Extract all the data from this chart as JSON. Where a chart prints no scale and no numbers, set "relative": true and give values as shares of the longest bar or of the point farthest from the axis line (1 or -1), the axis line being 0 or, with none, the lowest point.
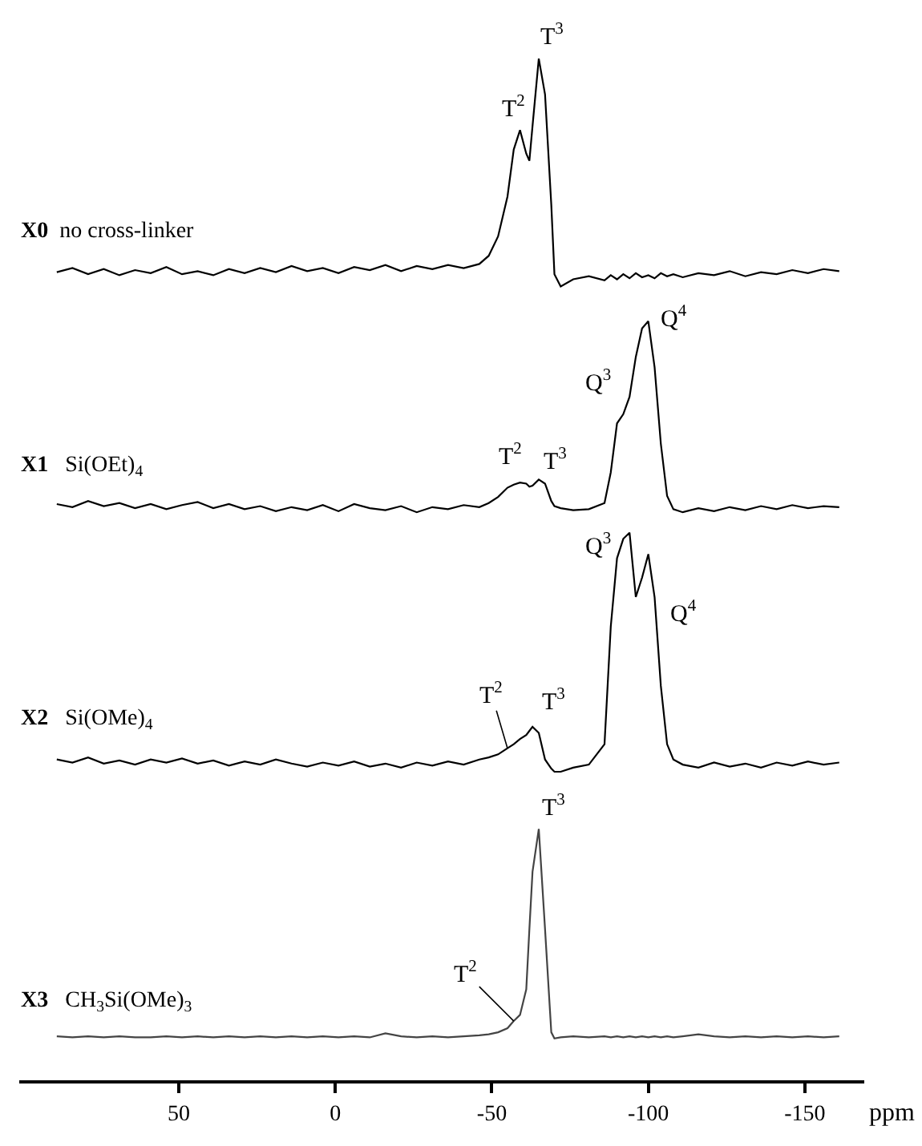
{
  "chart_data": {
    "type": "line",
    "relative": true,
    "xlabel": "ppm",
    "xlim": [
      101,
      -169
    ],
    "xticks": [
      50,
      0,
      -50,
      -100,
      -150
    ],
    "legend": false,
    "marker": "none",
    "line_style": "solid",
    "x": [
      89,
      84,
      79,
      74,
      69,
      64,
      59,
      54,
      49,
      44,
      39,
      34,
      29,
      24,
      19,
      14,
      9,
      4,
      -1,
      -6,
      -11,
      -16,
      -21,
      -26,
      -31,
      -36,
      -41,
      -46,
      -49,
      -52,
      -55,
      -57,
      -59,
      -61,
      -62,
      -63,
      -65,
      -67,
      -69,
      -70,
      -72,
      -76,
      -81,
      -86,
      -88,
      -90,
      -92,
      -94,
      -96,
      -98,
      -100,
      -102,
      -104,
      -106,
      -108,
      -111,
      -116,
      -121,
      -126,
      -131,
      -136,
      -141,
      -146,
      -151,
      -156,
      -161
    ],
    "series": [
      {
        "name": "X0  no cross-linker",
        "color": "#000000",
        "values": [
          0.791,
          0.795,
          0.789,
          0.794,
          0.788,
          0.793,
          0.79,
          0.796,
          0.789,
          0.792,
          0.788,
          0.794,
          0.79,
          0.795,
          0.791,
          0.797,
          0.792,
          0.795,
          0.79,
          0.796,
          0.793,
          0.798,
          0.792,
          0.797,
          0.794,
          0.798,
          0.795,
          0.799,
          0.807,
          0.826,
          0.865,
          0.911,
          0.93,
          0.907,
          0.9,
          0.934,
          1.0,
          0.965,
          0.857,
          0.789,
          0.777,
          0.784,
          0.787,
          0.783,
          0.788,
          0.784,
          0.789,
          0.785,
          0.79,
          0.786,
          0.788,
          0.785,
          0.79,
          0.787,
          0.789,
          0.786,
          0.79,
          0.788,
          0.792,
          0.787,
          0.791,
          0.789,
          0.793,
          0.79,
          0.794,
          0.792
        ]
      },
      {
        "name": "X1   Si(OEt)$_{4}$",
        "color": "#000000",
        "values": [
          0.564,
          0.561,
          0.567,
          0.562,
          0.565,
          0.56,
          0.564,
          0.559,
          0.563,
          0.566,
          0.56,
          0.564,
          0.559,
          0.562,
          0.557,
          0.561,
          0.558,
          0.563,
          0.557,
          0.564,
          0.56,
          0.558,
          0.562,
          0.556,
          0.561,
          0.559,
          0.563,
          0.561,
          0.565,
          0.571,
          0.58,
          0.583,
          0.585,
          0.584,
          0.581,
          0.582,
          0.588,
          0.584,
          0.567,
          0.562,
          0.56,
          0.558,
          0.559,
          0.565,
          0.595,
          0.643,
          0.652,
          0.669,
          0.708,
          0.736,
          0.743,
          0.698,
          0.623,
          0.572,
          0.559,
          0.556,
          0.56,
          0.557,
          0.561,
          0.558,
          0.562,
          0.559,
          0.563,
          0.56,
          0.562,
          0.561
        ]
      },
      {
        "name": "X2   Si(OMe)$_{4}$",
        "color": "#000000",
        "values": [
          0.314,
          0.311,
          0.316,
          0.31,
          0.313,
          0.309,
          0.314,
          0.311,
          0.315,
          0.31,
          0.313,
          0.308,
          0.312,
          0.309,
          0.314,
          0.31,
          0.307,
          0.311,
          0.308,
          0.312,
          0.307,
          0.31,
          0.306,
          0.311,
          0.308,
          0.312,
          0.309,
          0.314,
          0.316,
          0.319,
          0.325,
          0.329,
          0.334,
          0.338,
          0.342,
          0.346,
          0.34,
          0.314,
          0.305,
          0.302,
          0.302,
          0.306,
          0.309,
          0.329,
          0.444,
          0.511,
          0.53,
          0.536,
          0.473,
          0.492,
          0.515,
          0.473,
          0.386,
          0.329,
          0.314,
          0.309,
          0.306,
          0.311,
          0.307,
          0.31,
          0.306,
          0.311,
          0.308,
          0.312,
          0.309,
          0.311
        ]
      },
      {
        "name": "X3   CH$_{3}$Si(OMe)$_{3}$",
        "color": "#444444",
        "values": [
          0.043,
          0.042,
          0.043,
          0.042,
          0.043,
          0.042,
          0.042,
          0.043,
          0.042,
          0.043,
          0.042,
          0.043,
          0.042,
          0.043,
          0.042,
          0.043,
          0.042,
          0.043,
          0.042,
          0.043,
          0.042,
          0.046,
          0.043,
          0.042,
          0.043,
          0.042,
          0.043,
          0.044,
          0.045,
          0.047,
          0.051,
          0.058,
          0.064,
          0.089,
          0.148,
          0.204,
          0.246,
          0.148,
          0.047,
          0.041,
          0.042,
          0.043,
          0.042,
          0.043,
          0.042,
          0.043,
          0.042,
          0.043,
          0.042,
          0.043,
          0.042,
          0.043,
          0.042,
          0.043,
          0.042,
          0.043,
          0.045,
          0.043,
          0.042,
          0.043,
          0.042,
          0.043,
          0.042,
          0.043,
          0.042,
          0.043
        ]
      }
    ],
    "annotations": [
      {
        "text": "T$^{2}$",
        "x": -59,
        "y": 0.93
      },
      {
        "text": "T$^{3}$",
        "x": -65,
        "y": 1.0
      },
      {
        "text": "T$^{2}$",
        "x": -59,
        "y": 0.585
      },
      {
        "text": "T$^{3}$",
        "x": -65,
        "y": 0.588
      },
      {
        "text": "Q$^{3}$",
        "x": -92,
        "y": 0.652
      },
      {
        "text": "Q$^{4}$",
        "x": -100,
        "y": 0.743
      },
      {
        "text": "T$^{2}$",
        "x": -55,
        "y": 0.325
      },
      {
        "text": "T$^{3}$",
        "x": -63,
        "y": 0.346
      },
      {
        "text": "Q$^{3}$",
        "x": -94,
        "y": 0.536
      },
      {
        "text": "Q$^{4}$",
        "x": -100,
        "y": 0.515
      },
      {
        "text": "T$^{2}$",
        "x": -57,
        "y": 0.058
      },
      {
        "text": "T$^{3}$",
        "x": -65,
        "y": 0.246
      }
    ]
  }
}
